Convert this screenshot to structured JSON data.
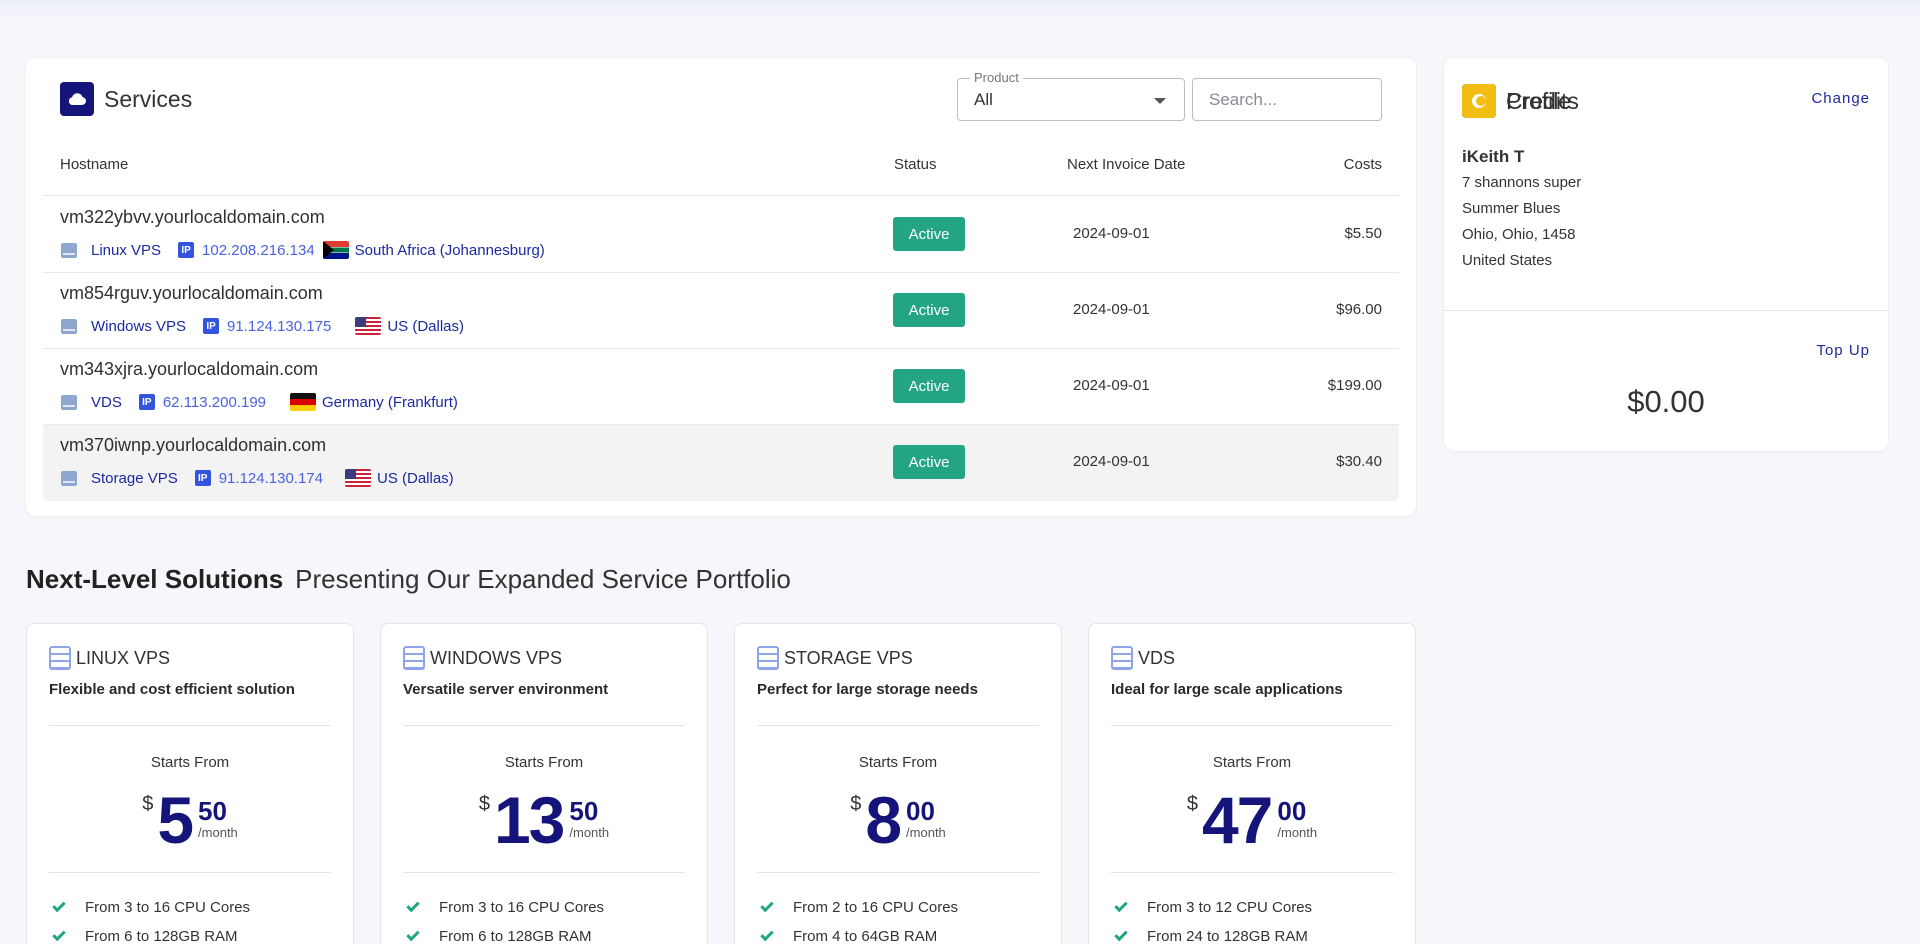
{
  "services": {
    "title": "Services",
    "product_filter": {
      "legend": "Product",
      "value": "All"
    },
    "search_placeholder": "Search...",
    "columns": {
      "hostname": "Hostname",
      "status": "Status",
      "next_invoice": "Next Invoice Date",
      "costs": "Costs"
    },
    "rows": [
      {
        "hostname": "vm322ybvv.yourlocaldomain.com",
        "product": "Linux VPS",
        "ip_badge": "IP",
        "ip": "102.208.216.134",
        "flag": "za",
        "location": "South Africa (Johannesburg)",
        "status": "Active",
        "date": "2024-09-01",
        "cost": "$5.50"
      },
      {
        "hostname": "vm854rguv.yourlocaldomain.com",
        "product": "Windows VPS",
        "ip_badge": "IP",
        "ip": "91.124.130.175",
        "flag": "us",
        "location": "US (Dallas)",
        "status": "Active",
        "date": "2024-09-01",
        "cost": "$96.00"
      },
      {
        "hostname": "vm343xjra.yourlocaldomain.com",
        "product": "VDS",
        "ip_badge": "IP",
        "ip": "62.113.200.199",
        "flag": "de",
        "location": "Germany (Frankfurt)",
        "status": "Active",
        "date": "2024-09-01",
        "cost": "$199.00"
      },
      {
        "hostname": "vm370iwnp.yourlocaldomain.com",
        "product": "Storage VPS",
        "ip_badge": "IP",
        "ip": "91.124.130.174",
        "flag": "us",
        "location": "US (Dallas)",
        "status": "Active",
        "date": "2024-09-01",
        "cost": "$30.40"
      }
    ]
  },
  "profile": {
    "title": "Profile",
    "change_label": "Change",
    "name": "iKeith T",
    "address_lines": [
      "7 shannons super",
      "Summer Blues",
      "Ohio, Ohio, 1458",
      "United States"
    ]
  },
  "credits": {
    "title": "Credits",
    "topup_label": "Top Up",
    "amount": "$0.00"
  },
  "solutions": {
    "title": "Next-Level Solutions",
    "subtitle": "Presenting Our Expanded Service Portfolio",
    "plans": [
      {
        "name": "LINUX VPS",
        "desc": "Flexible and cost efficient solution",
        "starts": "Starts From",
        "currency": "$",
        "whole": "5",
        "cents": "50",
        "per": "/month",
        "features": [
          "From 3 to 16 CPU Cores",
          "From 6 to 128GB RAM"
        ]
      },
      {
        "name": "WINDOWS VPS",
        "desc": "Versatile server environment",
        "starts": "Starts From",
        "currency": "$",
        "whole": "13",
        "cents": "50",
        "per": "/month",
        "features": [
          "From 3 to 16 CPU Cores",
          "From 6 to 128GB RAM"
        ]
      },
      {
        "name": "STORAGE VPS",
        "desc": "Perfect for large storage needs",
        "starts": "Starts From",
        "currency": "$",
        "whole": "8",
        "cents": "00",
        "per": "/month",
        "features": [
          "From 2 to 16 CPU Cores",
          "From 4 to 64GB RAM"
        ]
      },
      {
        "name": "VDS",
        "desc": "Ideal for large scale applications",
        "starts": "Starts From",
        "currency": "$",
        "whole": "47",
        "cents": "00",
        "per": "/month",
        "features": [
          "From 3 to 12 CPU Cores",
          "From 24 to 128GB RAM"
        ]
      }
    ]
  },
  "colors": {
    "brand": "#14147a",
    "active": "#23a584",
    "credits_icon": "#f3be14",
    "link": "#1e2a96"
  }
}
